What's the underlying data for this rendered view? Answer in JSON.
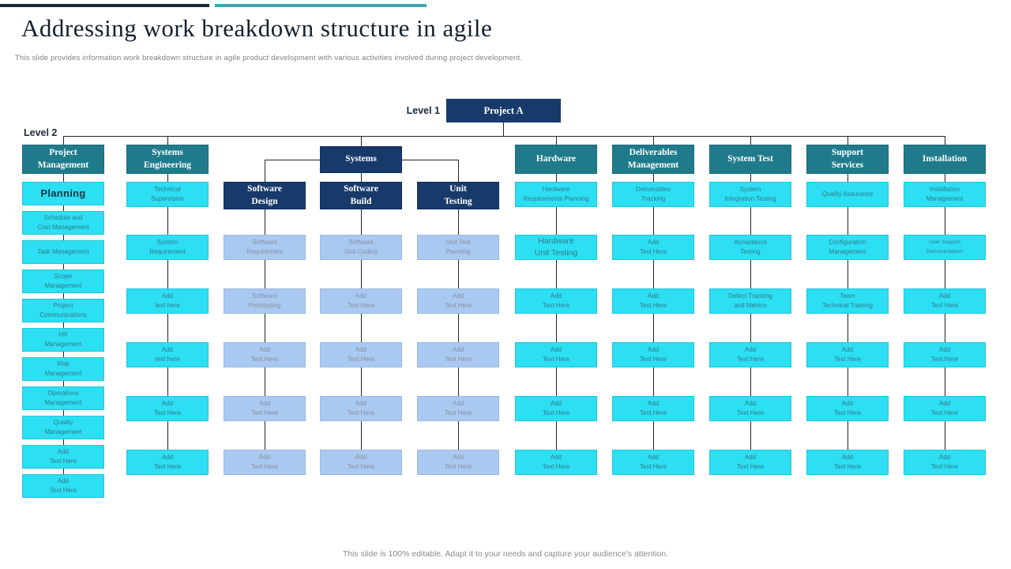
{
  "page": {
    "title": "Addressing work breakdown structure in agile",
    "subtitle": "This slide provides information work breakdown structure in agile product development with various activities involved during project development.",
    "footer": "This slide is 100% editable. Adapt it to your needs and capture your audience's attention."
  },
  "levels": {
    "level1_label": "Level 1",
    "level2_label": "Level 2"
  },
  "root": {
    "label": "Project A"
  },
  "systems_parent": {
    "label": "Systems"
  },
  "colors": {
    "navy": "#173a6b",
    "teal": "#1f7b8b",
    "cyan": "#2cdff2",
    "light_blue": "#aac9f0",
    "accent_bar_navy": "#1b2a3b",
    "accent_bar_cyan": "#3fa4b5",
    "connector": "#232323"
  },
  "columns": [
    {
      "id": "project-management",
      "header": {
        "label": "Project\nManagement",
        "kind": "teal"
      },
      "cells": [
        {
          "label": "Planning",
          "variant": "title"
        },
        {
          "label": "Schedule and\nCost Management"
        },
        {
          "label": "Task Management"
        },
        {
          "label": "Scope\nManagement"
        },
        {
          "label": "Project\nCommunications"
        },
        {
          "label": "HR\nManagement"
        },
        {
          "label": "Risk\nManagement"
        },
        {
          "label": "Operations\nManagement"
        },
        {
          "label": "Quality\nManagement"
        },
        {
          "label": "Add\nText Here"
        },
        {
          "label": "Add\nText Here"
        }
      ]
    },
    {
      "id": "systems-engineering",
      "header": {
        "label": "Systems\nEngineering",
        "kind": "teal"
      },
      "cells": [
        {
          "label": "Technical\nSupervision"
        },
        {
          "label": "System\nRequirement"
        },
        {
          "label": "Add\ntext here"
        },
        {
          "label": "Add\ntext here"
        },
        {
          "label": "Add\nText Here"
        },
        {
          "label": "Add\nText Here"
        }
      ]
    },
    {
      "id": "software-design",
      "parent": "systems",
      "header": {
        "label": "Software\nDesign",
        "kind": "navy"
      },
      "cells": [
        {
          "label": "Software\nRequirement",
          "kind": "blue"
        },
        {
          "label": "Software\nPrototyping",
          "kind": "blue"
        },
        {
          "label": "Add\nText Here",
          "kind": "blue"
        },
        {
          "label": "Add\nText Here",
          "kind": "blue"
        },
        {
          "label": "Add\nText Here",
          "kind": "blue"
        }
      ]
    },
    {
      "id": "software-build",
      "parent": "systems",
      "header": {
        "label": "Software\nBuild",
        "kind": "navy"
      },
      "cells": [
        {
          "label": "Software\nUnit Coding",
          "kind": "blue"
        },
        {
          "label": "Add\nText Here",
          "kind": "blue"
        },
        {
          "label": "Add\nText Here",
          "kind": "blue"
        },
        {
          "label": "Add\nText Here",
          "kind": "blue"
        },
        {
          "label": "Add\nText Here",
          "kind": "blue"
        }
      ]
    },
    {
      "id": "unit-testing",
      "parent": "systems",
      "header": {
        "label": "Unit\nTesting",
        "kind": "navy"
      },
      "cells": [
        {
          "label": "Unit Test\nPlanning",
          "kind": "blue"
        },
        {
          "label": "Add\nText Here",
          "kind": "blue"
        },
        {
          "label": "Add\nText Here",
          "kind": "blue"
        },
        {
          "label": "Add\nText Here",
          "kind": "blue"
        },
        {
          "label": "Add\nText Here",
          "kind": "blue"
        }
      ]
    },
    {
      "id": "hardware",
      "header": {
        "label": "Hardware",
        "kind": "teal"
      },
      "cells": [
        {
          "label": "Hardware\nRequirements Planning"
        },
        {
          "label": "Hardware\nUnit Testing",
          "variant": "emphasis"
        },
        {
          "label": "Add\nText Here"
        },
        {
          "label": "Add\nText Here"
        },
        {
          "label": "Add\nText Here"
        },
        {
          "label": "Add\nText Here"
        }
      ]
    },
    {
      "id": "deliverables-management",
      "header": {
        "label": "Deliverables\nManagement",
        "kind": "teal"
      },
      "cells": [
        {
          "label": "Deliverables\nTracking"
        },
        {
          "label": "Add\nText Here"
        },
        {
          "label": "Add\nText Here"
        },
        {
          "label": "Add\nText Here"
        },
        {
          "label": "Add\nText Here"
        },
        {
          "label": "Add\nText Here"
        }
      ]
    },
    {
      "id": "system-test",
      "header": {
        "label": "System Test",
        "kind": "teal"
      },
      "cells": [
        {
          "label": "System\nIntegration Testing"
        },
        {
          "label": "Acceptance\nTesting"
        },
        {
          "label": "Defect Tracking\nand Metrics"
        },
        {
          "label": "Add\nText Here"
        },
        {
          "label": "Add\nText Here"
        },
        {
          "label": "Add\nText Here"
        }
      ]
    },
    {
      "id": "support-services",
      "header": {
        "label": "Support\nServices",
        "kind": "teal"
      },
      "cells": [
        {
          "label": "Quality Assurance"
        },
        {
          "label": "Configuration\nManagement"
        },
        {
          "label": "Team\nTechnical Training"
        },
        {
          "label": "Add\nText Here"
        },
        {
          "label": "Add\nText Here"
        },
        {
          "label": "Add\nText Here"
        }
      ]
    },
    {
      "id": "installation",
      "header": {
        "label": "Installation",
        "kind": "teal"
      },
      "cells": [
        {
          "label": "Installation\nManagement"
        },
        {
          "label": "User Support\nDocumentation",
          "variant": "small"
        },
        {
          "label": "Add\nText Here"
        },
        {
          "label": "Add\nText Here"
        },
        {
          "label": "Add\nText Here"
        },
        {
          "label": "Add\nText Here"
        }
      ]
    }
  ]
}
